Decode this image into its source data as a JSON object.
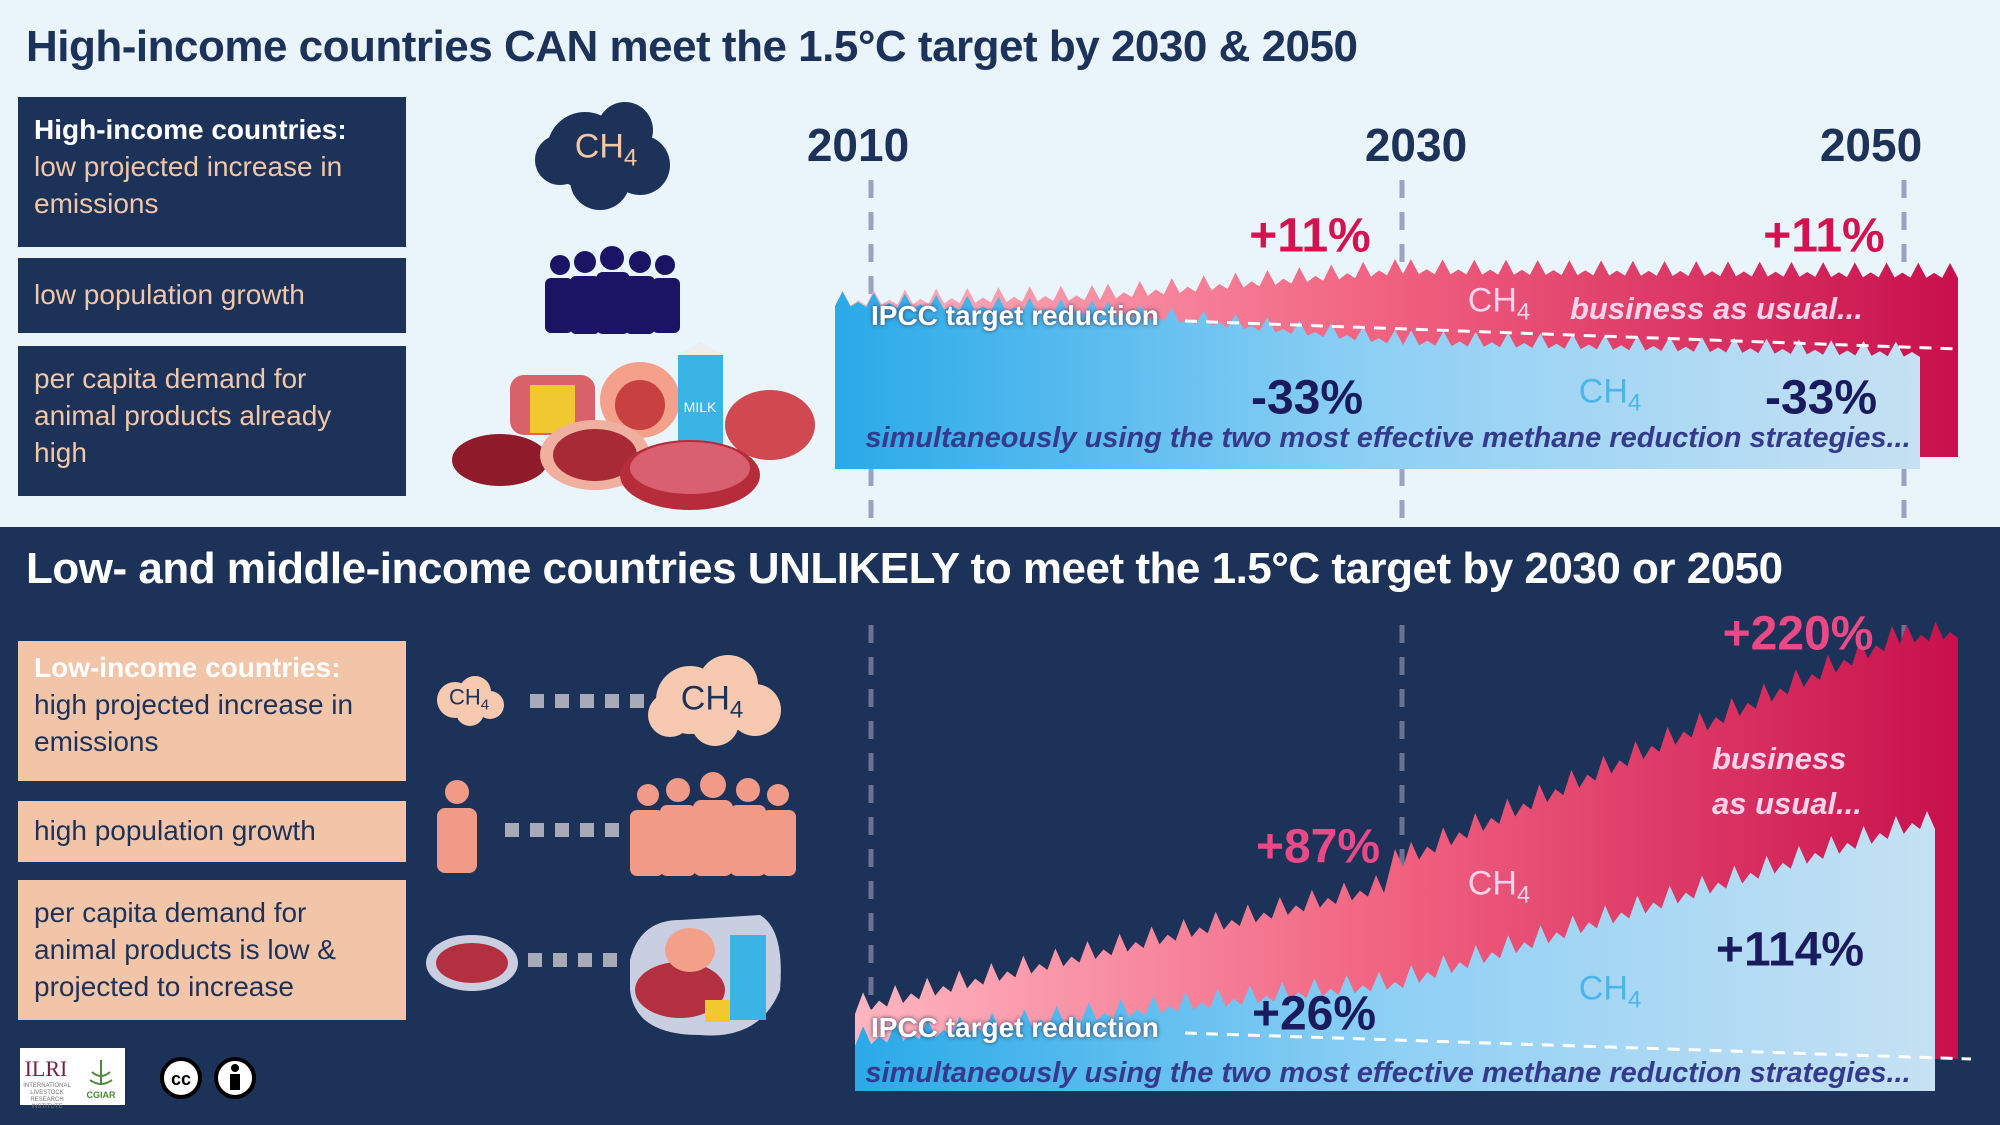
{
  "top": {
    "title": "High-income countries CAN meet the 1.5°C target by 2030 & 2050",
    "boxes": {
      "heading": "High-income countries:",
      "line1": "low projected increase in emissions",
      "box2": "low population growth",
      "box3": "per capita demand for animal products already high"
    },
    "years": [
      "2010",
      "2030",
      "2050"
    ],
    "bau_2030": "+11%",
    "bau_2050": "+11%",
    "red_2030": "-33%",
    "red_2050": "-33%",
    "bau_label": "business as usual...",
    "ipcc_label": "IPCC target reduction",
    "strategy_label": "simultaneously using the two most effective methane reduction strategies...",
    "ch4": "CH",
    "ch4_sub": "4",
    "milk": "MILK"
  },
  "bottom": {
    "title": "Low- and middle-income countries UNLIKELY to meet the 1.5°C target by 2030 or 2050",
    "boxes": {
      "heading": "Low-income countries:",
      "line1": "high projected increase in emissions",
      "box2": "high population growth",
      "box3": "per capita demand for animal products is low & projected to increase"
    },
    "bau_2030": "+87%",
    "bau_2050": "+220%",
    "red_2030": "+26%",
    "red_2050": "+114%",
    "bau_line1": "business",
    "bau_line2": "as usual...",
    "ipcc_label": "IPCC target reduction",
    "strategy_label": "simultaneously using the two most effective methane reduction strategies...",
    "ch4": "CH",
    "ch4_sub": "4"
  },
  "footer": {
    "ilri": "ILRI",
    "ilri_sub": "INTERNATIONAL LIVESTOCK RESEARCH INSTITUTE",
    "cgiar": "CGIAR",
    "cc": "cc"
  },
  "colors": {
    "navy": "#1c3259",
    "light_bg": "#eaf4fb",
    "bau_red": "#d3124f",
    "reduction_blue": "#29aae8",
    "peach": "#f2c4a8"
  }
}
